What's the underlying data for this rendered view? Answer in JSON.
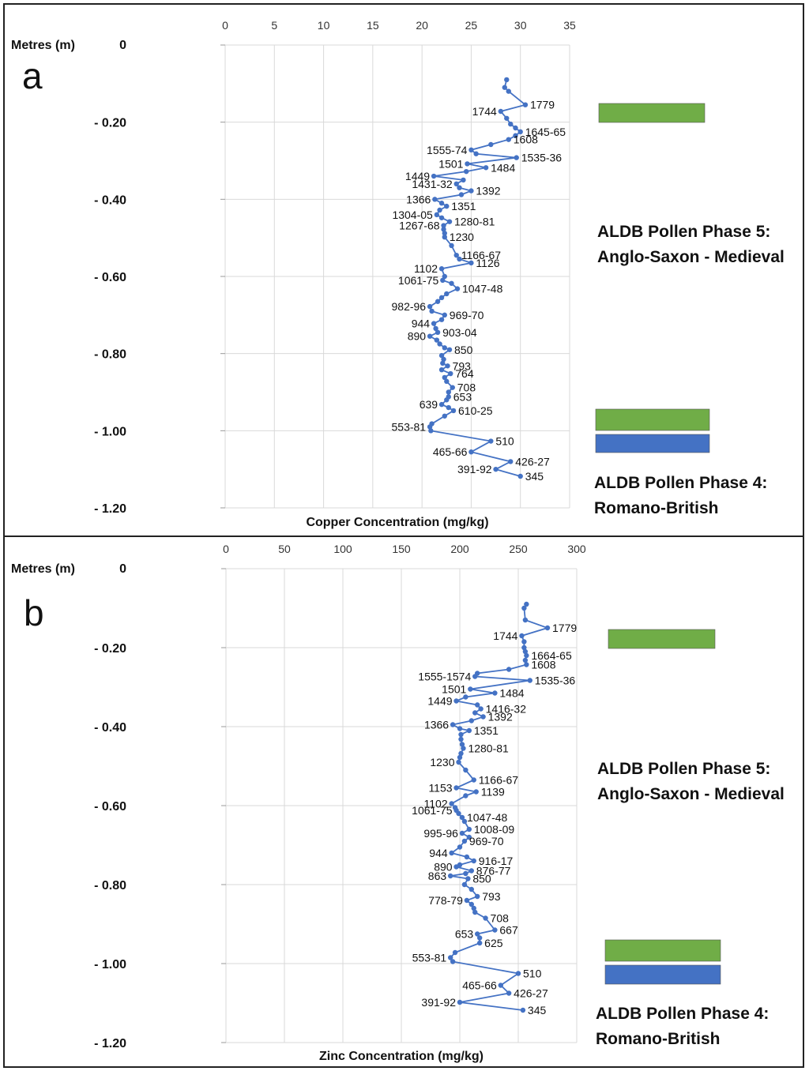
{
  "chart_data": [
    {
      "type": "line",
      "panel_label": "a",
      "xlabel": "Copper Concentration (mg/kg)",
      "ylabel": "Metres (m)",
      "xlim": [
        0,
        35
      ],
      "x_ticks": [
        "0",
        "5",
        "10",
        "15",
        "20",
        "25",
        "30",
        "35"
      ],
      "ylim": [
        -1.2,
        0
      ],
      "y_ticks": [
        "0",
        "- 0.20",
        "- 0.40",
        "- 0.60",
        "- 0.80",
        "- 1.00",
        "- 1.20"
      ],
      "grid": "vertical",
      "series": [
        {
          "color": "#4472c4",
          "points": [
            {
              "x": 28.6,
              "y": -0.09
            },
            {
              "x": 28.4,
              "y": -0.11
            },
            {
              "x": 28.8,
              "y": -0.12
            },
            {
              "x": 30.5,
              "y": -0.155,
              "label": "1779"
            },
            {
              "x": 28.0,
              "y": -0.172,
              "label": "1744"
            },
            {
              "x": 28.6,
              "y": -0.19
            },
            {
              "x": 29.0,
              "y": -0.205
            },
            {
              "x": 29.5,
              "y": -0.215
            },
            {
              "x": 30.0,
              "y": -0.225,
              "label": "1645-65"
            },
            {
              "x": 29.5,
              "y": -0.235
            },
            {
              "x": 28.8,
              "y": -0.245,
              "label": "1608"
            },
            {
              "x": 27.0,
              "y": -0.258
            },
            {
              "x": 25.0,
              "y": -0.272,
              "label": "1555-74"
            },
            {
              "x": 25.5,
              "y": -0.282
            },
            {
              "x": 29.6,
              "y": -0.292,
              "label": "1535-36"
            },
            {
              "x": 24.6,
              "y": -0.308,
              "label": "1501"
            },
            {
              "x": 26.5,
              "y": -0.318,
              "label": "1484"
            },
            {
              "x": 24.5,
              "y": -0.328
            },
            {
              "x": 21.2,
              "y": -0.34,
              "label": "1449"
            },
            {
              "x": 24.2,
              "y": -0.35
            },
            {
              "x": 23.5,
              "y": -0.36,
              "label": "1431-32"
            },
            {
              "x": 23.8,
              "y": -0.37
            },
            {
              "x": 25.0,
              "y": -0.378,
              "label": "1392"
            },
            {
              "x": 24.0,
              "y": -0.388
            },
            {
              "x": 21.3,
              "y": -0.4,
              "label": "1366"
            },
            {
              "x": 22.0,
              "y": -0.41
            },
            {
              "x": 22.5,
              "y": -0.418,
              "label": "1351"
            },
            {
              "x": 21.8,
              "y": -0.428
            },
            {
              "x": 21.5,
              "y": -0.44,
              "label": "1304-05"
            },
            {
              "x": 22.0,
              "y": -0.448
            },
            {
              "x": 22.8,
              "y": -0.458,
              "label": "1280-81"
            },
            {
              "x": 22.2,
              "y": -0.468,
              "label": "1267-68"
            },
            {
              "x": 22.2,
              "y": -0.478
            },
            {
              "x": 22.3,
              "y": -0.488
            },
            {
              "x": 22.3,
              "y": -0.498,
              "label": "1230"
            },
            {
              "x": 23.0,
              "y": -0.52
            },
            {
              "x": 23.5,
              "y": -0.545,
              "label": "1166-67"
            },
            {
              "x": 23.8,
              "y": -0.555
            },
            {
              "x": 25.0,
              "y": -0.565,
              "label": "1126"
            },
            {
              "x": 22.0,
              "y": -0.58,
              "label": "1102"
            },
            {
              "x": 22.3,
              "y": -0.6
            },
            {
              "x": 22.1,
              "y": -0.61,
              "label": "1061-75"
            },
            {
              "x": 23.0,
              "y": -0.618
            },
            {
              "x": 23.6,
              "y": -0.632,
              "label": "1047-48"
            },
            {
              "x": 22.5,
              "y": -0.645
            },
            {
              "x": 22.0,
              "y": -0.655
            },
            {
              "x": 21.6,
              "y": -0.665
            },
            {
              "x": 20.8,
              "y": -0.678,
              "label": "982-96"
            },
            {
              "x": 21.0,
              "y": -0.69
            },
            {
              "x": 22.3,
              "y": -0.7,
              "label": "969-70"
            },
            {
              "x": 22.0,
              "y": -0.712
            },
            {
              "x": 21.2,
              "y": -0.722,
              "label": "944"
            },
            {
              "x": 21.4,
              "y": -0.735
            },
            {
              "x": 21.6,
              "y": -0.745,
              "label": "903-04"
            },
            {
              "x": 20.8,
              "y": -0.755,
              "label": "890"
            },
            {
              "x": 21.5,
              "y": -0.765
            },
            {
              "x": 21.8,
              "y": -0.775
            },
            {
              "x": 22.3,
              "y": -0.785
            },
            {
              "x": 22.8,
              "y": -0.79,
              "label": "850"
            },
            {
              "x": 22.0,
              "y": -0.805
            },
            {
              "x": 22.2,
              "y": -0.815
            },
            {
              "x": 22.1,
              "y": -0.825
            },
            {
              "x": 22.6,
              "y": -0.832,
              "label": "793"
            },
            {
              "x": 22.0,
              "y": -0.842
            },
            {
              "x": 22.9,
              "y": -0.852,
              "label": "764"
            },
            {
              "x": 22.3,
              "y": -0.862
            },
            {
              "x": 22.5,
              "y": -0.872
            },
            {
              "x": 23.1,
              "y": -0.888,
              "label": "708"
            },
            {
              "x": 22.7,
              "y": -0.9
            },
            {
              "x": 22.7,
              "y": -0.912,
              "label": "653"
            },
            {
              "x": 22.5,
              "y": -0.92
            },
            {
              "x": 22.0,
              "y": -0.932,
              "label": "639"
            },
            {
              "x": 22.7,
              "y": -0.94
            },
            {
              "x": 23.2,
              "y": -0.948,
              "label": "610-25"
            },
            {
              "x": 22.3,
              "y": -0.962
            },
            {
              "x": 21.0,
              "y": -0.982
            },
            {
              "x": 20.8,
              "y": -0.99,
              "label": "553-81"
            },
            {
              "x": 20.9,
              "y": -1.0
            },
            {
              "x": 27.0,
              "y": -1.027,
              "label": "510"
            },
            {
              "x": 25.0,
              "y": -1.055,
              "label": "465-66"
            },
            {
              "x": 29.0,
              "y": -1.08,
              "label": "426-27"
            },
            {
              "x": 27.5,
              "y": -1.1,
              "label": "391-92"
            },
            {
              "x": 30.0,
              "y": -1.118,
              "label": "345"
            }
          ]
        }
      ]
    },
    {
      "type": "line",
      "panel_label": "b",
      "xlabel": "Zinc Concentration (mg/kg)",
      "ylabel": "Metres (m)",
      "xlim": [
        0,
        300
      ],
      "x_ticks": [
        "0",
        "50",
        "100",
        "150",
        "200",
        "250",
        "300"
      ],
      "ylim": [
        -1.2,
        0
      ],
      "y_ticks": [
        "0",
        "- 0.20",
        "- 0.40",
        "- 0.60",
        "- 0.80",
        "- 1.00",
        "- 1.20"
      ],
      "grid": "vertical",
      "series": [
        {
          "color": "#4472c4",
          "points": [
            {
              "x": 257,
              "y": -0.09
            },
            {
              "x": 255,
              "y": -0.1
            },
            {
              "x": 256,
              "y": -0.13
            },
            {
              "x": 275,
              "y": -0.15,
              "label": "1779"
            },
            {
              "x": 253,
              "y": -0.17,
              "label": "1744"
            },
            {
              "x": 255,
              "y": -0.185
            },
            {
              "x": 255,
              "y": -0.2
            },
            {
              "x": 256,
              "y": -0.21
            },
            {
              "x": 257,
              "y": -0.22,
              "label": "1664-65"
            },
            {
              "x": 256,
              "y": -0.232
            },
            {
              "x": 257,
              "y": -0.243,
              "label": "1608"
            },
            {
              "x": 242,
              "y": -0.255
            },
            {
              "x": 215,
              "y": -0.265
            },
            {
              "x": 213,
              "y": -0.273,
              "label": "1555-1574"
            },
            {
              "x": 260,
              "y": -0.283,
              "label": "1535-36"
            },
            {
              "x": 209,
              "y": -0.305,
              "label": "1501"
            },
            {
              "x": 230,
              "y": -0.315,
              "label": "1484"
            },
            {
              "x": 205,
              "y": -0.325
            },
            {
              "x": 197,
              "y": -0.335,
              "label": "1449"
            },
            {
              "x": 215,
              "y": -0.345
            },
            {
              "x": 218,
              "y": -0.355,
              "label": "1416-32"
            },
            {
              "x": 213,
              "y": -0.365
            },
            {
              "x": 220,
              "y": -0.375,
              "label": "1392"
            },
            {
              "x": 210,
              "y": -0.385
            },
            {
              "x": 194,
              "y": -0.395,
              "label": "1366"
            },
            {
              "x": 200,
              "y": -0.405
            },
            {
              "x": 208,
              "y": -0.41,
              "label": "1351"
            },
            {
              "x": 201,
              "y": -0.42
            },
            {
              "x": 201,
              "y": -0.432
            },
            {
              "x": 202,
              "y": -0.445
            },
            {
              "x": 203,
              "y": -0.455,
              "label": "1280-81"
            },
            {
              "x": 201,
              "y": -0.468
            },
            {
              "x": 200,
              "y": -0.478
            },
            {
              "x": 199,
              "y": -0.49,
              "label": "1230"
            },
            {
              "x": 205,
              "y": -0.51
            },
            {
              "x": 212,
              "y": -0.535,
              "label": "1166-67"
            },
            {
              "x": 197,
              "y": -0.555,
              "label": "1153"
            },
            {
              "x": 214,
              "y": -0.565,
              "label": "1139"
            },
            {
              "x": 205,
              "y": -0.575
            },
            {
              "x": 193,
              "y": -0.595,
              "label": "1102"
            },
            {
              "x": 196,
              "y": -0.605
            },
            {
              "x": 197,
              "y": -0.612,
              "label": "1061-75"
            },
            {
              "x": 199,
              "y": -0.62
            },
            {
              "x": 202,
              "y": -0.63,
              "label": "1047-48"
            },
            {
              "x": 204,
              "y": -0.64
            },
            {
              "x": 208,
              "y": -0.66,
              "label": "1008-09"
            },
            {
              "x": 202,
              "y": -0.67,
              "label": "995-96"
            },
            {
              "x": 208,
              "y": -0.68
            },
            {
              "x": 204,
              "y": -0.69,
              "label": "969-70"
            },
            {
              "x": 200,
              "y": -0.705
            },
            {
              "x": 193,
              "y": -0.72,
              "label": "944"
            },
            {
              "x": 206,
              "y": -0.73
            },
            {
              "x": 212,
              "y": -0.74,
              "label": "916-17"
            },
            {
              "x": 200,
              "y": -0.75
            },
            {
              "x": 197,
              "y": -0.755,
              "label": "890"
            },
            {
              "x": 210,
              "y": -0.765,
              "label": "876-77"
            },
            {
              "x": 205,
              "y": -0.772
            },
            {
              "x": 192,
              "y": -0.778,
              "label": "863"
            },
            {
              "x": 207,
              "y": -0.785,
              "label": "850"
            },
            {
              "x": 204,
              "y": -0.8
            },
            {
              "x": 210,
              "y": -0.812
            },
            {
              "x": 215,
              "y": -0.83,
              "label": "793"
            },
            {
              "x": 206,
              "y": -0.84,
              "label": "778-79"
            },
            {
              "x": 210,
              "y": -0.85
            },
            {
              "x": 212,
              "y": -0.86
            },
            {
              "x": 213,
              "y": -0.87
            },
            {
              "x": 222,
              "y": -0.885,
              "label": "708"
            },
            {
              "x": 230,
              "y": -0.915,
              "label": "667"
            },
            {
              "x": 215,
              "y": -0.925,
              "label": "653"
            },
            {
              "x": 217,
              "y": -0.935
            },
            {
              "x": 217,
              "y": -0.948,
              "label": "625"
            },
            {
              "x": 196,
              "y": -0.972
            },
            {
              "x": 192,
              "y": -0.985,
              "label": "553-81"
            },
            {
              "x": 194,
              "y": -0.995
            },
            {
              "x": 250,
              "y": -1.025,
              "label": "510"
            },
            {
              "x": 235,
              "y": -1.055,
              "label": "465-66"
            },
            {
              "x": 242,
              "y": -1.075,
              "label": "426-27"
            },
            {
              "x": 200,
              "y": -1.098,
              "label": "391-92"
            },
            {
              "x": 254,
              "y": -1.118,
              "label": "345"
            }
          ]
        }
      ]
    }
  ],
  "phases": {
    "phase5": [
      "ALDB Pollen Phase 5:",
      "Anglo-Saxon - Medieval"
    ],
    "phase4": [
      "ALDB Pollen Phase 4:",
      "Romano-British"
    ]
  },
  "colors": {
    "line": "#4472c4",
    "green_bar": "#70ad47",
    "blue_bar": "#4472c4"
  }
}
